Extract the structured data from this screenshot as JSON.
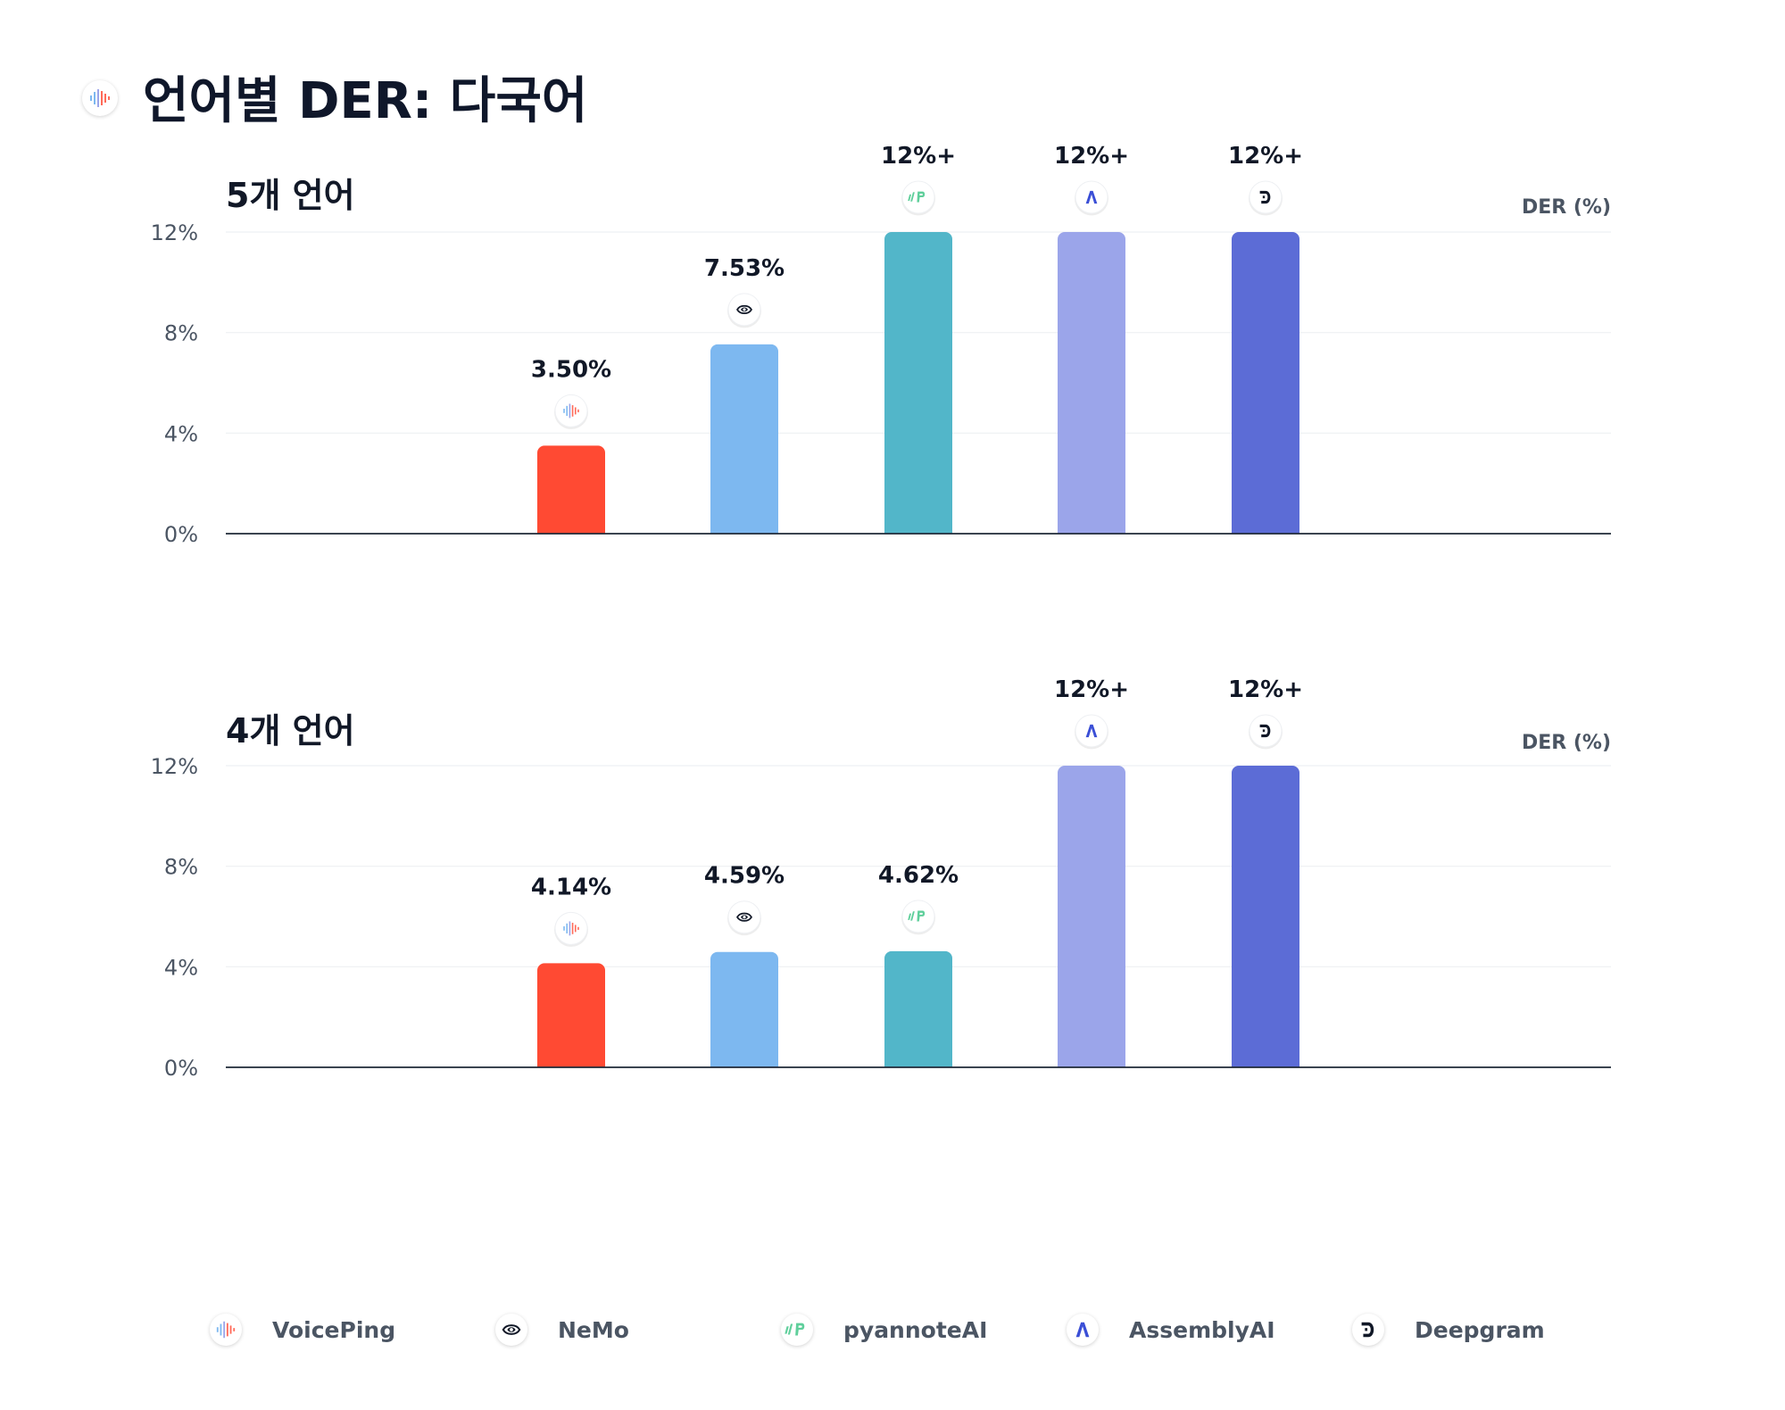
{
  "title": "언어별 DER: 다국어",
  "colors": {
    "VoicePing": "#ff4a33",
    "NeMo": "#7db8f0",
    "pyannoteAI": "#52b6c9",
    "AssemblyAI": "#9ba5ea",
    "Deepgram": "#5c6cd6"
  },
  "icons": {
    "VoicePing": "voiceping-logo-icon",
    "NeMo": "nemo-logo-icon",
    "pyannoteAI": "pyannoteai-logo-icon",
    "AssemblyAI": "assemblyai-logo-icon",
    "Deepgram": "deepgram-logo-icon"
  },
  "legend": [
    {
      "label": "VoicePing"
    },
    {
      "label": "NeMo"
    },
    {
      "label": "pyannoteAI"
    },
    {
      "label": "AssemblyAI"
    },
    {
      "label": "Deepgram"
    }
  ],
  "chart_data": [
    {
      "type": "bar",
      "title": "5개 언어",
      "ylabel": "DER (%)",
      "yticks": [
        "0%",
        "4%",
        "8%",
        "12%"
      ],
      "ylim": [
        0,
        12
      ],
      "categories": [
        "VoicePing",
        "NeMo",
        "pyannoteAI",
        "AssemblyAI",
        "Deepgram"
      ],
      "values": [
        3.5,
        7.53,
        12,
        12,
        12
      ],
      "labels": [
        "3.50%",
        "7.53%",
        "12%+",
        "12%+",
        "12%+"
      ]
    },
    {
      "type": "bar",
      "title": "4개 언어",
      "ylabel": "DER (%)",
      "yticks": [
        "0%",
        "4%",
        "8%",
        "12%"
      ],
      "ylim": [
        0,
        12
      ],
      "categories": [
        "VoicePing",
        "NeMo",
        "pyannoteAI",
        "AssemblyAI",
        "Deepgram"
      ],
      "values": [
        4.14,
        4.59,
        4.62,
        12,
        12
      ],
      "labels": [
        "4.14%",
        "4.59%",
        "4.62%",
        "12%+",
        "12%+"
      ]
    }
  ]
}
